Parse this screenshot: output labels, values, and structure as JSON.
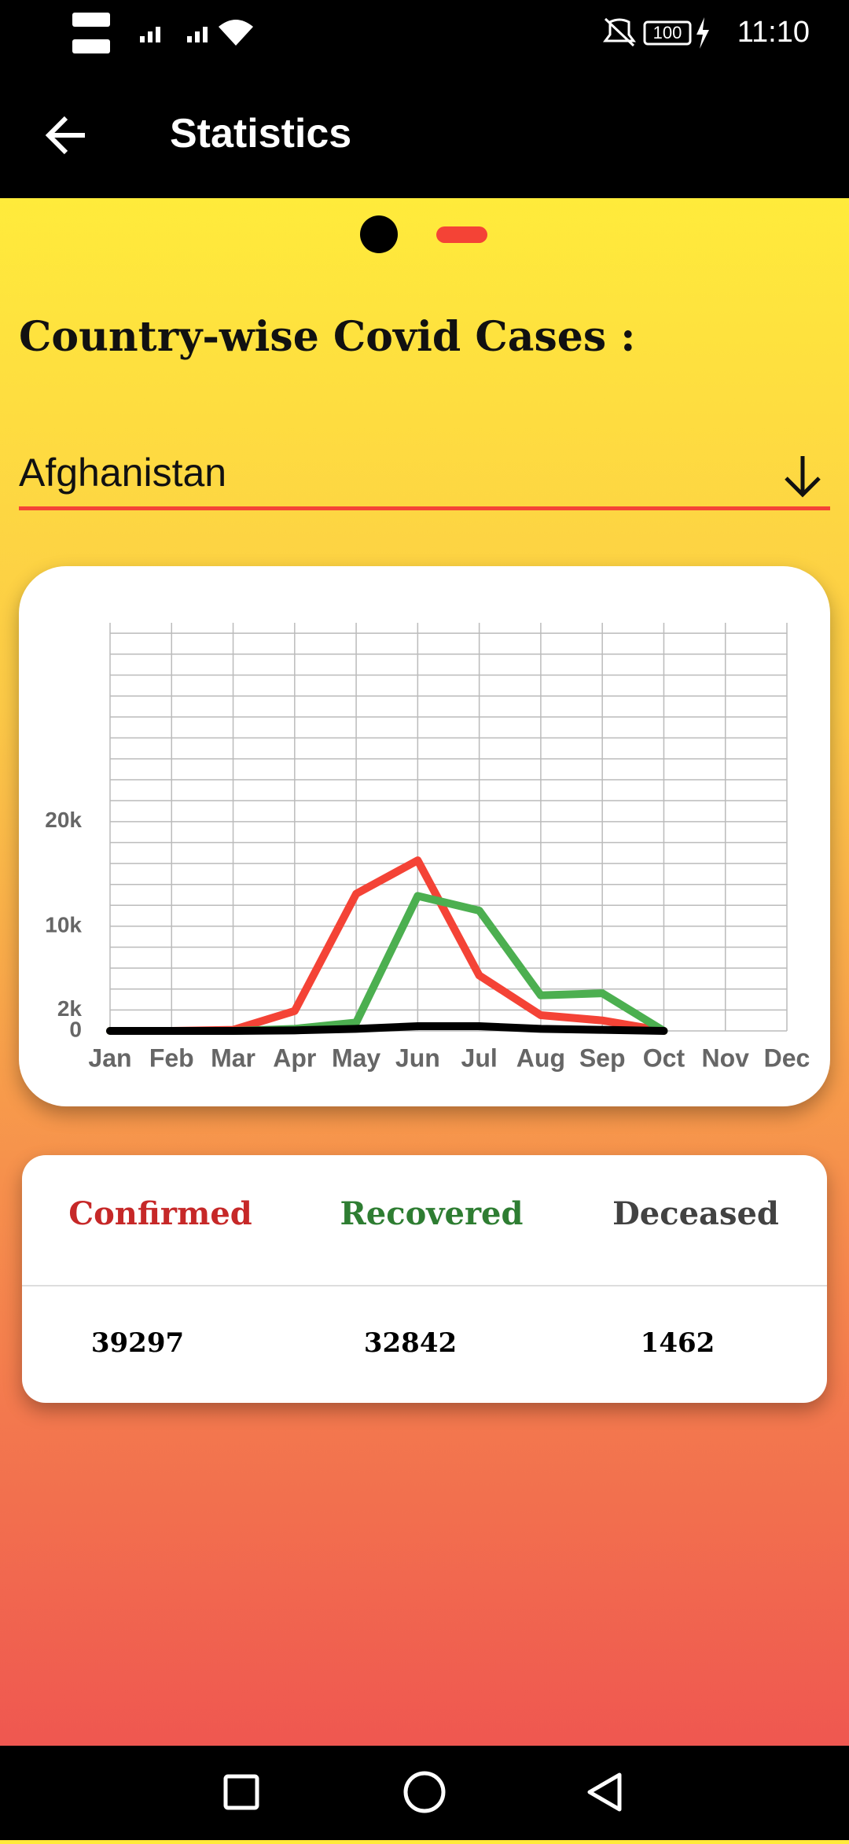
{
  "status_bar": {
    "time": "11:10",
    "battery": "100"
  },
  "app_bar": {
    "title": "Statistics"
  },
  "heading": "Country-wise Covid Cases :",
  "dropdown": {
    "selected": "Afghanistan"
  },
  "chart_data": {
    "type": "line",
    "categories": [
      "Jan",
      "Feb",
      "Mar",
      "Apr",
      "May",
      "Jun",
      "Jul",
      "Aug",
      "Sep",
      "Oct",
      "Nov",
      "Dec"
    ],
    "series": [
      {
        "name": "Confirmed",
        "color": "#f44336",
        "values": [
          0,
          0,
          100,
          1900,
          13100,
          16300,
          5300,
          1500,
          1000,
          0,
          null,
          null
        ]
      },
      {
        "name": "Recovered",
        "color": "#4caf50",
        "values": [
          0,
          0,
          0,
          200,
          800,
          12900,
          11500,
          3400,
          3600,
          0,
          null,
          null
        ]
      },
      {
        "name": "Deceased",
        "color": "#000000",
        "values": [
          0,
          0,
          0,
          50,
          200,
          450,
          450,
          200,
          100,
          0,
          null,
          null
        ]
      }
    ],
    "ylim": [
      0,
      39000
    ],
    "yticks": [
      0,
      {
        "value": 2000,
        "label": "2k"
      },
      {
        "value": 10000,
        "label": "10k"
      },
      {
        "value": 20000,
        "label": "20k"
      }
    ],
    "ygrid": [
      0,
      2000,
      4000,
      6000,
      8000,
      10000,
      12000,
      14000,
      16000,
      18000,
      20000,
      22000,
      24000,
      26000,
      28000,
      30000,
      32000,
      34000,
      36000,
      38000
    ],
    "grid": true
  },
  "table": {
    "rows": [
      [
        "39297",
        "32842",
        "1462"
      ]
    ]
  }
}
